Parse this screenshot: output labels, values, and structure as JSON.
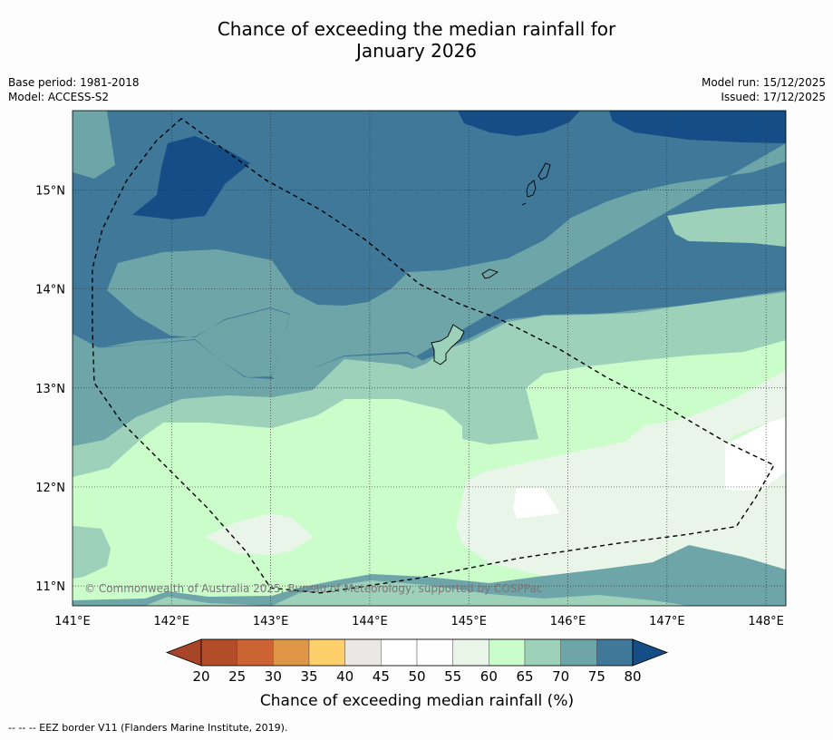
{
  "title": {
    "line1": "Chance of exceeding the median rainfall for",
    "line2": "January 2026"
  },
  "meta_left": {
    "base_period": "Base period: 1981-2018",
    "model": "Model: ACCESS-S2"
  },
  "meta_right": {
    "model_run": "Model run: 15/12/2025",
    "issued": "Issued: 17/12/2025"
  },
  "copyright": "© Commonwealth of Australia 2025, Bureau of Meteorology, supported by COSPPac",
  "footnote": "--  --  -- EEZ border V11 (Flanders Marine Institute, 2019).",
  "map": {
    "lon_range": [
      141,
      148.2
    ],
    "lat_range": [
      10.8,
      15.8
    ],
    "lon_ticks": [
      {
        "v": 141,
        "label": "141°E"
      },
      {
        "v": 142,
        "label": "142°E"
      },
      {
        "v": 143,
        "label": "143°E"
      },
      {
        "v": 144,
        "label": "144°E"
      },
      {
        "v": 145,
        "label": "145°E"
      },
      {
        "v": 146,
        "label": "146°E"
      },
      {
        "v": 147,
        "label": "147°E"
      },
      {
        "v": 148,
        "label": "148°E"
      }
    ],
    "lat_ticks": [
      {
        "v": 11,
        "label": "11°N"
      },
      {
        "v": 12,
        "label": "12°N"
      },
      {
        "v": 13,
        "label": "13°N"
      },
      {
        "v": 14,
        "label": "14°N"
      },
      {
        "v": 15,
        "label": "15°N"
      }
    ],
    "eez_border": [
      [
        142.1,
        15.72
      ],
      [
        141.85,
        15.5
      ],
      [
        141.55,
        15.1
      ],
      [
        141.3,
        14.6
      ],
      [
        141.2,
        14.2
      ],
      [
        141.2,
        13.6
      ],
      [
        141.22,
        13.05
      ],
      [
        141.5,
        12.65
      ],
      [
        141.9,
        12.25
      ],
      [
        142.35,
        11.8
      ],
      [
        142.75,
        11.35
      ],
      [
        143.0,
        10.98
      ],
      [
        143.5,
        10.93
      ],
      [
        144.5,
        11.08
      ],
      [
        145.5,
        11.28
      ],
      [
        146.5,
        11.43
      ],
      [
        147.2,
        11.52
      ],
      [
        147.7,
        11.6
      ],
      [
        147.9,
        11.9
      ],
      [
        148.08,
        12.22
      ],
      [
        147.6,
        12.45
      ],
      [
        147.0,
        12.8
      ],
      [
        146.4,
        13.1
      ],
      [
        145.9,
        13.4
      ],
      [
        145.3,
        13.7
      ],
      [
        144.9,
        13.85
      ],
      [
        144.5,
        14.05
      ],
      [
        143.95,
        14.5
      ],
      [
        143.5,
        14.8
      ],
      [
        142.95,
        15.1
      ],
      [
        142.1,
        15.72
      ]
    ]
  },
  "legend": {
    "title": "Chance of exceeding median rainfall (%)",
    "ticks": [
      "20",
      "25",
      "30",
      "35",
      "40",
      "45",
      "50",
      "55",
      "60",
      "65",
      "70",
      "75",
      "80"
    ],
    "colors": [
      "#a84427",
      "#b34c28",
      "#cc6332",
      "#e09647",
      "#fdd06b",
      "#e9e8e5",
      "#ffffff",
      "#fefefe",
      "#eaf5e9",
      "#cafdca",
      "#9dd1ba",
      "#6ea5a8",
      "#3f7898",
      "#154d86"
    ]
  }
}
